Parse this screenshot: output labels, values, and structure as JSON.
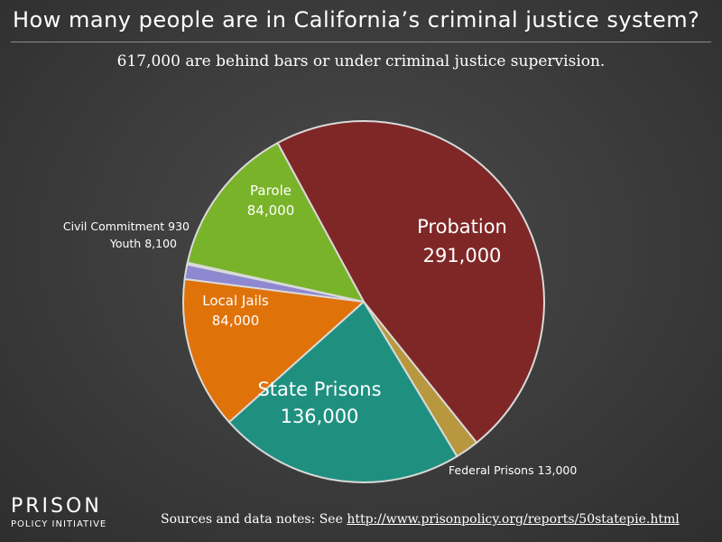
{
  "title": "How many people are in California’s criminal justice system?",
  "subtitle": "617,000 are behind bars or under criminal justice supervision.",
  "logo": {
    "line1": "PRISON",
    "line2": "POLICY INITIATIVE"
  },
  "footer": {
    "prefix": "Sources and data notes: See ",
    "link": "http://www.prisonpolicy.org/reports/50statepie.html"
  },
  "chart_data": {
    "type": "pie",
    "title": "How many people are in California’s criminal justice system?",
    "slices": [
      {
        "name": "Probation",
        "value": 291000,
        "label_value": "291,000",
        "color": "#7f2727"
      },
      {
        "name": "Federal Prisons",
        "value": 13000,
        "label_value": "13,000",
        "color": "#b8983e"
      },
      {
        "name": "State Prisons",
        "value": 136000,
        "label_value": "136,000",
        "color": "#1f9080"
      },
      {
        "name": "Local Jails",
        "value": 84000,
        "label_value": "84,000",
        "color": "#e0720a"
      },
      {
        "name": "Youth",
        "value": 8100,
        "label_value": "8,100",
        "color": "#8e88d0"
      },
      {
        "name": "Civil Commitment",
        "value": 930,
        "label_value": "930",
        "color": "#e6e6e6"
      },
      {
        "name": "Parole",
        "value": 84000,
        "label_value": "84,000",
        "color": "#79b32a"
      }
    ]
  }
}
